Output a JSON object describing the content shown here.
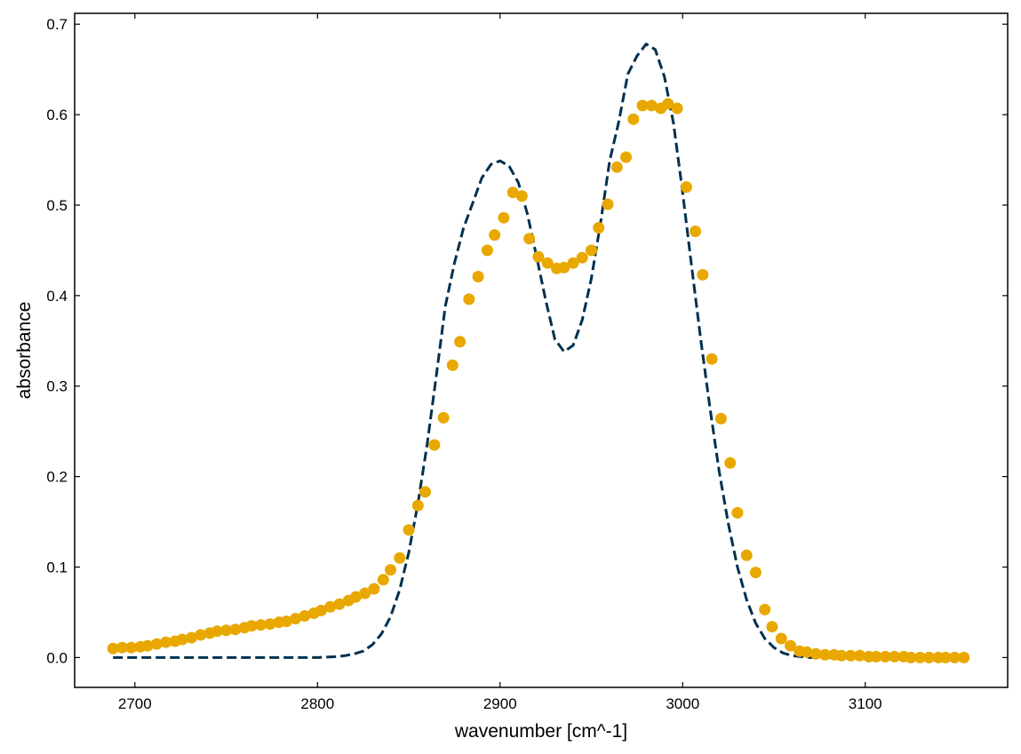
{
  "chart_data": {
    "type": "scatter",
    "title": "",
    "xlabel": "wavenumber [cm^-1]",
    "ylabel": "absorbance",
    "xlim": [
      2667,
      3178
    ],
    "ylim": [
      -0.033,
      0.712
    ],
    "x_ticks": [
      2700,
      2800,
      2900,
      3000,
      3100
    ],
    "x_tick_labels": [
      "2700",
      "2800",
      "2900",
      "3000",
      "3100"
    ],
    "y_ticks": [
      0.0,
      0.1,
      0.2,
      0.3,
      0.4,
      0.5,
      0.6,
      0.7
    ],
    "y_tick_labels": [
      "0.0",
      "0.1",
      "0.2",
      "0.3",
      "0.4",
      "0.5",
      "0.6",
      "0.7"
    ],
    "grid": false,
    "tick_direction": "in",
    "series": [
      {
        "kind": "scatter",
        "color": "#E8A800",
        "points": [
          [
            2688,
            0.01
          ],
          [
            2693,
            0.011
          ],
          [
            2698,
            0.011
          ],
          [
            2703,
            0.012
          ],
          [
            2707,
            0.013
          ],
          [
            2712,
            0.015
          ],
          [
            2717,
            0.017
          ],
          [
            2722,
            0.018
          ],
          [
            2726,
            0.02
          ],
          [
            2731,
            0.022
          ],
          [
            2736,
            0.025
          ],
          [
            2741,
            0.027
          ],
          [
            2745,
            0.029
          ],
          [
            2750,
            0.03
          ],
          [
            2755,
            0.031
          ],
          [
            2760,
            0.033
          ],
          [
            2764,
            0.035
          ],
          [
            2769,
            0.036
          ],
          [
            2774,
            0.037
          ],
          [
            2779,
            0.039
          ],
          [
            2783,
            0.04
          ],
          [
            2788,
            0.043
          ],
          [
            2793,
            0.046
          ],
          [
            2798,
            0.049
          ],
          [
            2802,
            0.052
          ],
          [
            2807,
            0.056
          ],
          [
            2812,
            0.059
          ],
          [
            2817,
            0.063
          ],
          [
            2821,
            0.067
          ],
          [
            2826,
            0.071
          ],
          [
            2831,
            0.076
          ],
          [
            2836,
            0.086
          ],
          [
            2840,
            0.097
          ],
          [
            2845,
            0.11
          ],
          [
            2850,
            0.141
          ],
          [
            2855,
            0.168
          ],
          [
            2859,
            0.183
          ],
          [
            2864,
            0.235
          ],
          [
            2869,
            0.265
          ],
          [
            2874,
            0.323
          ],
          [
            2878,
            0.349
          ],
          [
            2883,
            0.396
          ],
          [
            2888,
            0.421
          ],
          [
            2893,
            0.45
          ],
          [
            2897,
            0.467
          ],
          [
            2902,
            0.486
          ],
          [
            2907,
            0.514
          ],
          [
            2912,
            0.51
          ],
          [
            2916,
            0.463
          ],
          [
            2921,
            0.443
          ],
          [
            2926,
            0.436
          ],
          [
            2931,
            0.43
          ],
          [
            2935,
            0.431
          ],
          [
            2940,
            0.436
          ],
          [
            2945,
            0.442
          ],
          [
            2950,
            0.45
          ],
          [
            2954,
            0.475
          ],
          [
            2959,
            0.501
          ],
          [
            2964,
            0.542
          ],
          [
            2969,
            0.553
          ],
          [
            2973,
            0.595
          ],
          [
            2978,
            0.61
          ],
          [
            2983,
            0.61
          ],
          [
            2988,
            0.607
          ],
          [
            2992,
            0.612
          ],
          [
            2997,
            0.607
          ],
          [
            3002,
            0.52
          ],
          [
            3007,
            0.471
          ],
          [
            3011,
            0.423
          ],
          [
            3016,
            0.33
          ],
          [
            3021,
            0.264
          ],
          [
            3026,
            0.215
          ],
          [
            3030,
            0.16
          ],
          [
            3035,
            0.113
          ],
          [
            3040,
            0.094
          ],
          [
            3045,
            0.053
          ],
          [
            3049,
            0.034
          ],
          [
            3054,
            0.021
          ],
          [
            3059,
            0.013
          ],
          [
            3064,
            0.007
          ],
          [
            3068,
            0.006
          ],
          [
            3073,
            0.004
          ],
          [
            3078,
            0.003
          ],
          [
            3083,
            0.003
          ],
          [
            3087,
            0.002
          ],
          [
            3092,
            0.002
          ],
          [
            3097,
            0.002
          ],
          [
            3102,
            0.001
          ],
          [
            3106,
            0.001
          ],
          [
            3111,
            0.001
          ],
          [
            3116,
            0.001
          ],
          [
            3121,
            0.001
          ],
          [
            3125,
            0.0
          ],
          [
            3130,
            0.0
          ],
          [
            3135,
            0.0
          ],
          [
            3140,
            0.0
          ],
          [
            3144,
            0.0
          ],
          [
            3149,
            0.0
          ],
          [
            3154,
            0.0
          ]
        ]
      },
      {
        "kind": "line",
        "style": "dashed",
        "color": "#00304F",
        "points": [
          [
            2688,
            0.0
          ],
          [
            2700,
            0.0
          ],
          [
            2720,
            0.0
          ],
          [
            2740,
            0.0
          ],
          [
            2760,
            0.0
          ],
          [
            2780,
            0.0
          ],
          [
            2800,
            0.0
          ],
          [
            2810,
            0.001
          ],
          [
            2815,
            0.002
          ],
          [
            2820,
            0.004
          ],
          [
            2825,
            0.007
          ],
          [
            2830,
            0.014
          ],
          [
            2835,
            0.026
          ],
          [
            2840,
            0.045
          ],
          [
            2845,
            0.075
          ],
          [
            2850,
            0.116
          ],
          [
            2855,
            0.17
          ],
          [
            2860,
            0.235
          ],
          [
            2865,
            0.31
          ],
          [
            2870,
            0.388
          ],
          [
            2875,
            0.436
          ],
          [
            2880,
            0.475
          ],
          [
            2885,
            0.502
          ],
          [
            2890,
            0.53
          ],
          [
            2895,
            0.545
          ],
          [
            2900,
            0.549
          ],
          [
            2905,
            0.543
          ],
          [
            2910,
            0.525
          ],
          [
            2915,
            0.49
          ],
          [
            2920,
            0.443
          ],
          [
            2925,
            0.395
          ],
          [
            2930,
            0.352
          ],
          [
            2935,
            0.338
          ],
          [
            2940,
            0.345
          ],
          [
            2945,
            0.373
          ],
          [
            2950,
            0.419
          ],
          [
            2955,
            0.48
          ],
          [
            2960,
            0.549
          ],
          [
            2965,
            0.592
          ],
          [
            2970,
            0.645
          ],
          [
            2975,
            0.665
          ],
          [
            2980,
            0.678
          ],
          [
            2985,
            0.672
          ],
          [
            2990,
            0.642
          ],
          [
            2995,
            0.59
          ],
          [
            3000,
            0.514
          ],
          [
            3005,
            0.431
          ],
          [
            3010,
            0.35
          ],
          [
            3015,
            0.275
          ],
          [
            3020,
            0.206
          ],
          [
            3025,
            0.148
          ],
          [
            3030,
            0.1
          ],
          [
            3035,
            0.064
          ],
          [
            3040,
            0.038
          ],
          [
            3045,
            0.021
          ],
          [
            3050,
            0.011
          ],
          [
            3055,
            0.005
          ],
          [
            3060,
            0.002
          ],
          [
            3065,
            0.001
          ],
          [
            3070,
            0.0
          ],
          [
            3080,
            0.0
          ],
          [
            3100,
            0.0
          ],
          [
            3120,
            0.0
          ],
          [
            3140,
            0.0
          ],
          [
            3154,
            0.0
          ]
        ]
      }
    ]
  }
}
